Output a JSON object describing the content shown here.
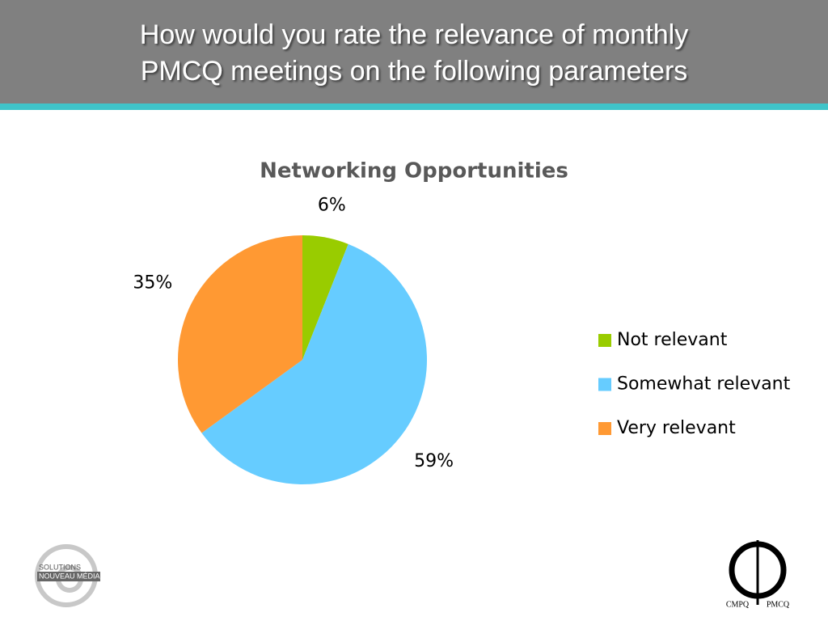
{
  "header": {
    "title_lines": [
      "How would you rate the relevance of monthly",
      "PMCQ meetings on the following parameters"
    ]
  },
  "chart_data": {
    "type": "pie",
    "title": "Networking Opportunities",
    "categories": [
      "Not relevant",
      "Somewhat relevant",
      "Very relevant"
    ],
    "values": [
      6,
      59,
      35
    ],
    "value_labels": [
      "6%",
      "59%",
      "35%"
    ],
    "colors": [
      "#99cc00",
      "#66ccff",
      "#ff9933"
    ],
    "legend": "right"
  },
  "logos": {
    "left": [
      "SOLUTIONS",
      "NOUVEAU MÉDIA"
    ],
    "right": [
      "CMPQ",
      "PMCQ"
    ]
  }
}
